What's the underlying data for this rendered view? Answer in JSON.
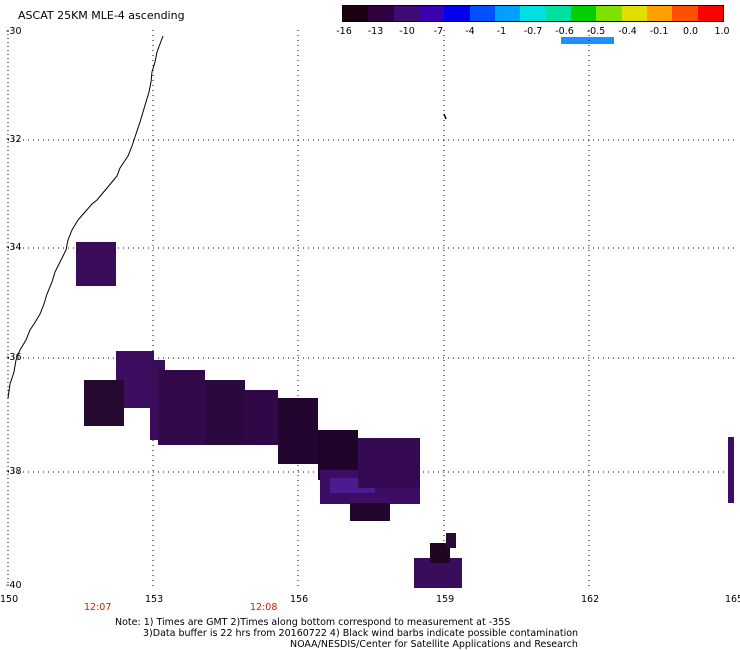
{
  "title": "ASCAT 25KM MLE-4 ascending",
  "colorbar": {
    "labels": [
      "-16",
      "-13",
      "-10",
      "-7",
      "-4",
      "-1",
      "-0.7",
      "-0.6",
      "-0.5",
      "-0.4",
      "-0.1",
      "0.0",
      "1.0"
    ],
    "colors": [
      "#1a0010",
      "#2e0040",
      "#3d0b73",
      "#3a00b0",
      "#0000ee",
      "#0050ff",
      "#00a0ff",
      "#00e0e0",
      "#00e0a0",
      "#00d000",
      "#80e000",
      "#e0e000",
      "#ffa000",
      "#ff5000",
      "#ff0000"
    ],
    "highlight_label": "-0.5"
  },
  "axes": {
    "lat_labels": [
      "-30",
      "-32",
      "-34",
      "-36",
      "-38",
      "-40"
    ],
    "lon_labels": [
      "150",
      "153",
      "156",
      "159",
      "162",
      "165"
    ]
  },
  "time_labels": [
    "12:07",
    "12:08"
  ],
  "notes": [
    "Note: 1) Times are GMT 2)Times along bottom correspond to measurement at -35S",
    "3)Data buffer is 22 hrs from 20160722 4) Black wind barbs indicate possible contamination",
    "NOAA/NESDIS/Center for Satellite Applications and Research"
  ]
}
